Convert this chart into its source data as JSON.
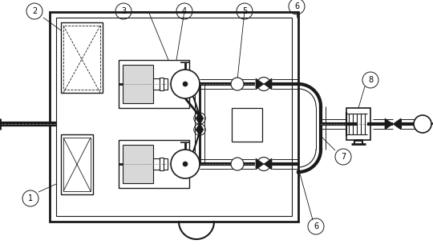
{
  "bg_color": "#ffffff",
  "lc": "#1a1a1a",
  "fig_width": 5.4,
  "fig_height": 3.1,
  "dpi": 100
}
